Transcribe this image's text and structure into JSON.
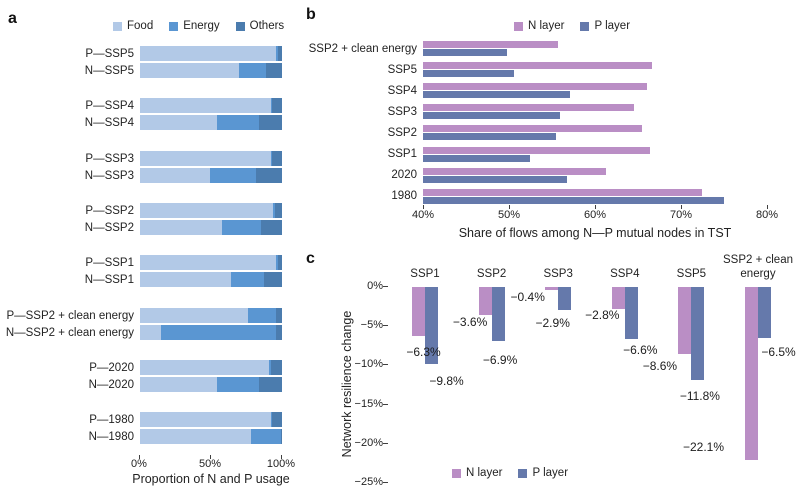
{
  "colors": {
    "food": "#b2c9e7",
    "energy": "#5a96d2",
    "others": "#4b7cae",
    "n_layer": "#ba8ec5",
    "p_layer": "#6579ab",
    "axis": "#3f3f3f",
    "text": "#232323"
  },
  "panel_a": {
    "letter": "a",
    "legend": [
      "Food",
      "Energy",
      "Others"
    ],
    "xlabel": "Proportion of N and P usage",
    "x_tick_labels": [
      "0%",
      "50%",
      "100%"
    ],
    "chart_data": {
      "type": "bar",
      "subtype": "horizontal-stacked",
      "unit": "%",
      "xlim": [
        0,
        100
      ],
      "grid": false,
      "legend_position": "top",
      "categories": [
        "P—SSP5",
        "N—SSP5",
        "P—SSP4",
        "N—SSP4",
        "P—SSP3",
        "N—SSP3",
        "P—SSP2",
        "N—SSP2",
        "P—SSP1",
        "N—SSP1",
        "P—SSP2 + clean energy",
        "N—SSP2 + clean energy",
        "P—2020",
        "N—2020",
        "P—1980",
        "N—1980"
      ],
      "series": [
        {
          "name": "Food",
          "values": [
            96,
            70,
            92,
            54,
            92,
            49,
            94,
            58,
            96,
            64,
            76,
            15,
            91,
            54,
            92,
            78
          ]
        },
        {
          "name": "Energy",
          "values": [
            1,
            19,
            1,
            30,
            1,
            33,
            1,
            27,
            1,
            23,
            20,
            81,
            1,
            30,
            1,
            21
          ]
        },
        {
          "name": "Others",
          "values": [
            3,
            11,
            7,
            16,
            7,
            18,
            5,
            15,
            3,
            13,
            4,
            4,
            8,
            16,
            7,
            1
          ]
        }
      ]
    }
  },
  "panel_b": {
    "letter": "b",
    "legend": [
      "N layer",
      "P layer"
    ],
    "xlabel": "Share of flows among N—P mutual nodes in TST",
    "x_tick_labels": [
      "40%",
      "50%",
      "60%",
      "70%",
      "80%"
    ],
    "chart_data": {
      "type": "bar",
      "subtype": "horizontal-grouped",
      "unit": "%",
      "xlim": [
        40,
        80
      ],
      "grid": false,
      "legend_position": "top",
      "categories": [
        "SSP2 + clean energy",
        "SSP5",
        "SSP4",
        "SSP3",
        "SSP2",
        "SSP1",
        "2020",
        "1980"
      ],
      "series": [
        {
          "name": "N layer",
          "values": [
            55.7,
            66.6,
            66.1,
            64.5,
            65.5,
            66.4,
            61.3,
            72.4
          ]
        },
        {
          "name": "P layer",
          "values": [
            49.8,
            50.6,
            57.1,
            55.9,
            55.5,
            52.4,
            56.8,
            75.0
          ]
        }
      ]
    }
  },
  "panel_c": {
    "letter": "c",
    "legend": [
      "N layer",
      "P layer"
    ],
    "ylabel": "Network resilience change",
    "y_tick_labels": [
      "0%",
      "−5%",
      "−10%",
      "−15%",
      "−20%",
      "−25%"
    ],
    "chart_data": {
      "type": "bar",
      "subtype": "vertical-grouped",
      "unit": "%",
      "ylim": [
        -25,
        0
      ],
      "grid": false,
      "legend_position": "bottom",
      "categories": [
        "SSP1",
        "SSP2",
        "SSP3",
        "SSP4",
        "SSP5",
        "SSP2 + clean energy"
      ],
      "series": [
        {
          "name": "N layer",
          "values": [
            -6.3,
            -3.6,
            -0.4,
            -2.8,
            -8.6,
            -22.1
          ],
          "labels": [
            "−6.3%",
            "−3.6%",
            "−0.4%",
            "−2.8%",
            "−8.6%",
            "−22.1%"
          ]
        },
        {
          "name": "P layer",
          "values": [
            -9.8,
            -6.9,
            -2.9,
            -6.6,
            -11.8,
            -6.5
          ],
          "labels": [
            "−9.8%",
            "−6.9%",
            "−2.9%",
            "−6.6%",
            "−11.8%",
            "−6.5%"
          ]
        }
      ]
    }
  }
}
